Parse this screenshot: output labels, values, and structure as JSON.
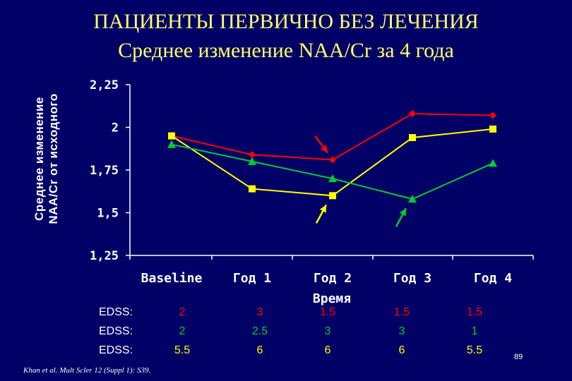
{
  "title": "ПАЦИЕНТЫ ПЕРВИЧНО БЕЗ ЛЕЧЕНИЯ",
  "subtitle": "Среднее изменение NAA/Cr за 4 года",
  "ylabel_line1": "Среднее изменение",
  "ylabel_line2": "NAA/Cr от исходного",
  "colors": {
    "background": "#000066",
    "title": "#ffff66",
    "red": "#ff0000",
    "yellow": "#ffff00",
    "green": "#00cc33",
    "axis": "#ffffff"
  },
  "chart_data": {
    "type": "line",
    "title": "Среднее изменение NAA/Cr за 4 года",
    "xlabel": "Время",
    "ylabel": "Среднее изменение NAA/Cr от исходного",
    "categories": [
      "Baseline",
      "Год 1",
      "Год 2",
      "Год 3",
      "Год 4"
    ],
    "ylim": [
      1.25,
      2.25
    ],
    "yticks": [
      "2,25",
      "2",
      "1,75",
      "1,5",
      "1,25"
    ],
    "ytick_values": [
      2.25,
      2,
      1.75,
      1.5,
      1.25
    ],
    "grid": false,
    "series": [
      {
        "color": "#ff0000",
        "marker": "diamond",
        "values": [
          1.95,
          1.84,
          1.81,
          2.08,
          2.07
        ]
      },
      {
        "color": "#ffff00",
        "marker": "square",
        "values": [
          1.95,
          1.64,
          1.6,
          1.94,
          1.99
        ]
      },
      {
        "color": "#00cc33",
        "marker": "triangle",
        "values": [
          1.9,
          1.8,
          1.7,
          1.58,
          1.79
        ]
      }
    ],
    "arrows": [
      {
        "color": "#ff0000",
        "target_series": 0,
        "target_index": 2,
        "direction": "down-right"
      },
      {
        "color": "#ffff00",
        "target_series": 1,
        "target_index": 2,
        "direction": "up-right"
      },
      {
        "color": "#00cc33",
        "target_series": 2,
        "target_index": 3,
        "direction": "up-right"
      }
    ]
  },
  "edss": {
    "label": "EDSS:",
    "rows": [
      {
        "color": "#ff0000",
        "values": [
          "2",
          "3",
          "1.5",
          "1.5",
          "1.5"
        ]
      },
      {
        "color": "#00cc33",
        "values": [
          "2",
          "2.5",
          "3",
          "3",
          "1"
        ]
      },
      {
        "color": "#ffff00",
        "values": [
          "5.5",
          "6",
          "6",
          "6",
          "5.5"
        ]
      }
    ]
  },
  "citation": "Khan et al. Mult Scler 12 (Suppl 1): S39.",
  "page_number": "89"
}
